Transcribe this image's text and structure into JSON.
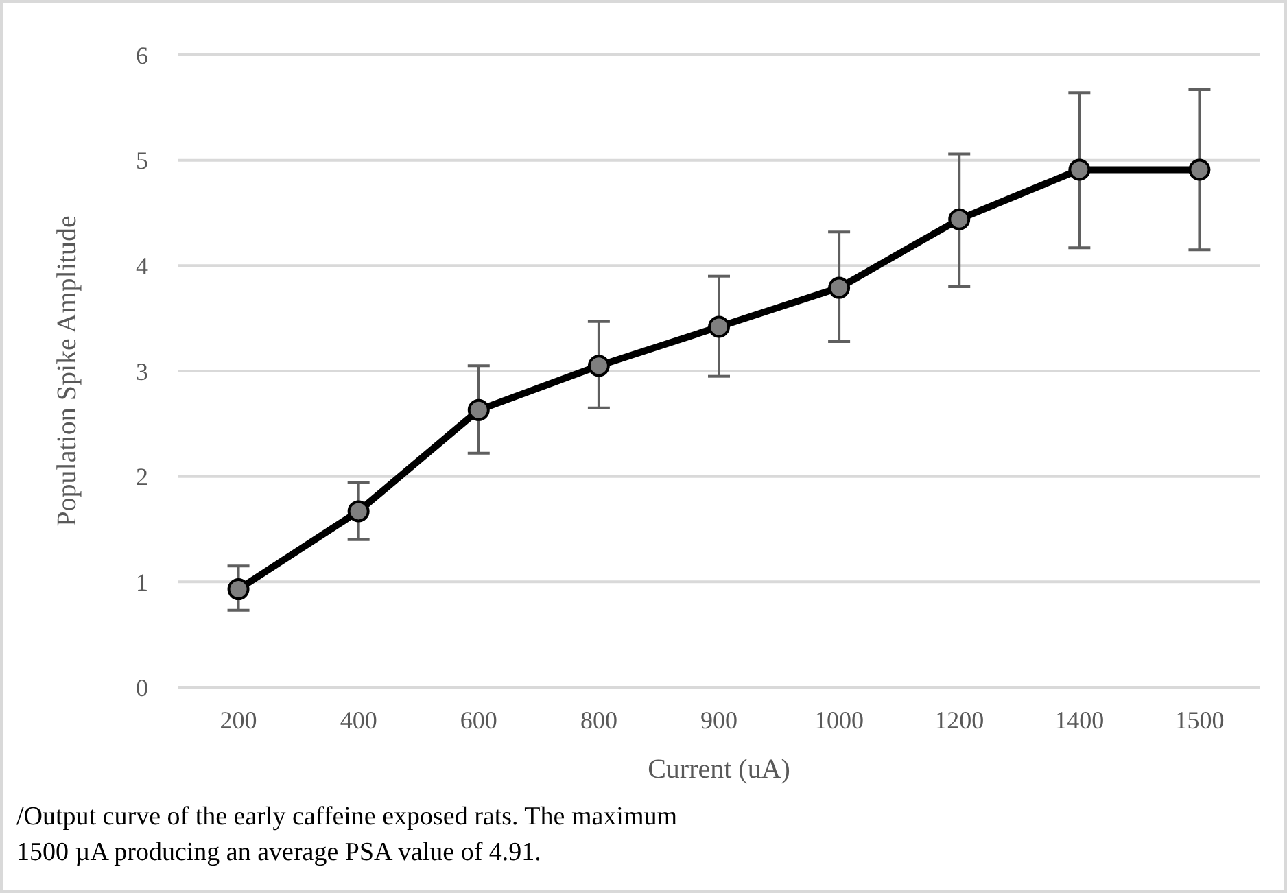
{
  "chart_data": {
    "type": "line",
    "xlabel": "Current (uA)",
    "ylabel": "Population Spike Amplitude",
    "categories": [
      "200",
      "400",
      "600",
      "800",
      "900",
      "1000",
      "1200",
      "1400",
      "1500"
    ],
    "series": [
      {
        "color": "#000000",
        "values": [
          0.93,
          1.67,
          2.63,
          3.05,
          3.42,
          3.79,
          4.44,
          4.91,
          4.91
        ],
        "errors": [
          [
            0.73,
            1.15
          ],
          [
            1.4,
            1.94
          ],
          [
            2.22,
            3.05
          ],
          [
            2.65,
            3.47
          ],
          [
            2.95,
            3.9
          ],
          [
            3.28,
            4.32
          ],
          [
            3.8,
            5.06
          ],
          [
            4.17,
            5.64
          ],
          [
            4.15,
            5.67
          ]
        ]
      }
    ],
    "ylim": [
      0,
      6
    ],
    "yticks": [
      0,
      1,
      2,
      3,
      4,
      5,
      6
    ],
    "grid": "y",
    "marker": "circle",
    "line_style": "solid",
    "annotations": [
      "/Output curve of the early caffeine exposed rats. The maximum",
      "1500 µA producing an average PSA value of 4.91."
    ]
  }
}
